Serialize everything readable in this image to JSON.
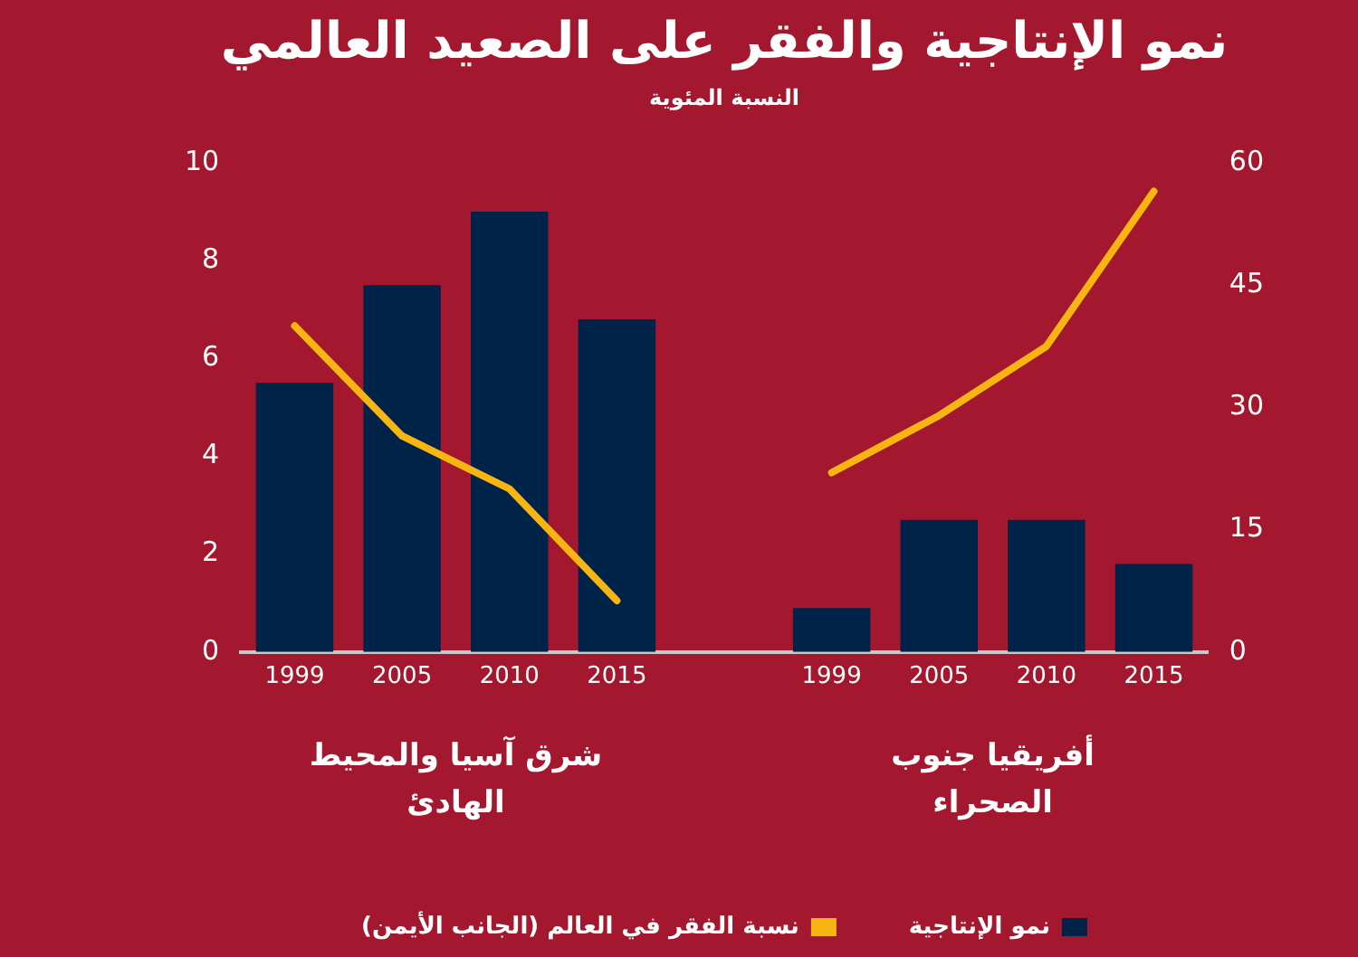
{
  "chart_data": {
    "type": "bar",
    "title": "نمو الإنتاجية والفقر على الصعيد العالمي",
    "subtitle": "النسبة المئوية",
    "categories": [
      "1999",
      "2005",
      "2010",
      "2015",
      null,
      "1999",
      "2005",
      "2010",
      "2015"
    ],
    "series": [
      {
        "name": "نمو الإنتاجية",
        "color": "#00234a",
        "values": [
          5.5,
          7.5,
          9.0,
          6.8,
          null,
          0.9,
          2.7,
          2.7,
          1.8
        ]
      },
      {
        "name": "نسبة الفقر في العالم (الجانب الأيمن)",
        "type": "line",
        "axis": "y2",
        "color": "#f7b512",
        "values": [
          40,
          26.5,
          20,
          6.3,
          null,
          22,
          29,
          37.5,
          56.5
        ]
      }
    ],
    "ylim": [
      0,
      10
    ],
    "yticks": [
      0,
      2,
      4,
      6,
      8,
      10
    ],
    "y2lim": [
      0,
      60
    ],
    "y2ticks": [
      0,
      15,
      30,
      45,
      60
    ],
    "annotations": [
      "شرق آسيا والمحيط الهادئ",
      "أفريقيا جنوب الصحراء"
    ],
    "grid": false,
    "legend": "bottom",
    "marker": "none"
  }
}
